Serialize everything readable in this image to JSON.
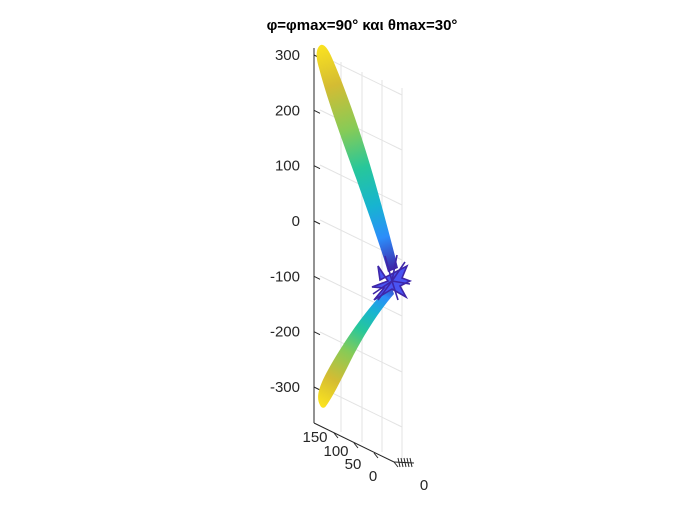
{
  "chart_data": {
    "type": "surface-3d",
    "title": "φ=φmax=90° και θmax=30°",
    "colormap": [
      "#3e26a8",
      "#4a54f2",
      "#2c8dfa",
      "#17b4d0",
      "#27c79a",
      "#86cb57",
      "#d4bc33",
      "#fbe31f"
    ],
    "grid": true,
    "z_axis": {
      "ticks": [
        300,
        200,
        100,
        0,
        -100,
        -200,
        -300
      ],
      "tick_labels": [
        "300",
        "200",
        "100",
        "0",
        "-100",
        "-200",
        "-300"
      ],
      "lim": [
        -340,
        340
      ]
    },
    "y_axis": {
      "ticks": [
        150,
        100,
        50,
        0
      ],
      "tick_labels": [
        "150",
        "100",
        "50",
        "0"
      ]
    },
    "x_axis": {
      "ticks": [
        0
      ],
      "tick_labels": [
        "0"
      ]
    },
    "lobes": [
      {
        "name": "upper",
        "z_tip": 320,
        "y_tip": 0,
        "color_tip": "#fbe31f"
      },
      {
        "name": "lower",
        "z_tip": -320,
        "y_tip": 0,
        "color_tip": "#fbe31f"
      }
    ],
    "center_z": -100
  }
}
